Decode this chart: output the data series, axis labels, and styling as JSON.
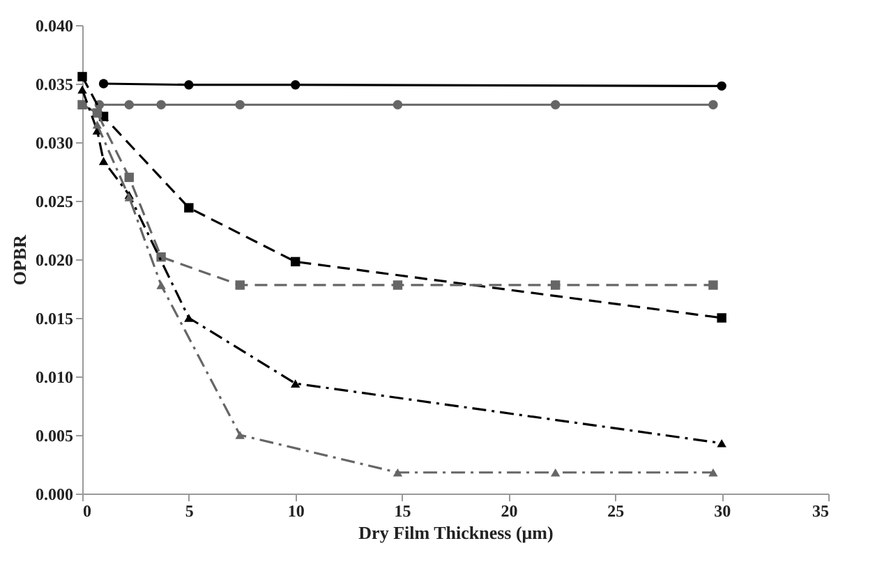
{
  "chart_data": {
    "type": "line",
    "xlabel": "Dry Film Thickness (μm)",
    "ylabel": "OPBR",
    "xlim": [
      0,
      35
    ],
    "xticks": [
      0,
      5,
      10,
      15,
      20,
      25,
      30,
      35
    ],
    "ylim": [
      0,
      0.04
    ],
    "yticks": [
      {
        "value": 0,
        "label": "0.000"
      },
      {
        "value": 0.005,
        "label": "0.005"
      },
      {
        "value": 0.01,
        "label": "0.010"
      },
      {
        "value": 0.015,
        "label": "0.015"
      },
      {
        "value": 0.02,
        "label": "0.020"
      },
      {
        "value": 0.025,
        "label": "0.025"
      },
      {
        "value": 0.03,
        "label": "0.030"
      },
      {
        "value": 0.035,
        "label": "0.035"
      },
      {
        "value": 0.04,
        "label": "0.040"
      }
    ],
    "grid": false,
    "series": [
      {
        "color": "#000000",
        "marker": "circle",
        "line_style": "solid",
        "x": [
          1,
          5,
          10,
          30
        ],
        "values": [
          0.035,
          0.0349,
          0.0349,
          0.0348
        ]
      },
      {
        "color": "#666666",
        "marker": "circle",
        "line_style": "solid",
        "x": [
          0.8,
          2.2,
          3.7,
          7.4,
          14.8,
          22.2,
          29.6
        ],
        "values": [
          0.0332,
          0.0332,
          0.0332,
          0.0332,
          0.0332,
          0.0332,
          0.0332
        ]
      },
      {
        "color": "#000000",
        "marker": "square",
        "line_style": "dashed",
        "x": [
          0,
          1,
          5,
          10,
          30
        ],
        "values": [
          0.0356,
          0.0322,
          0.0244,
          0.0198,
          0.015
        ]
      },
      {
        "color": "#666666",
        "marker": "square",
        "line_style": "dashed",
        "x": [
          0,
          0.7,
          2.2,
          3.7,
          7.4,
          14.8,
          22.2,
          29.6
        ],
        "values": [
          0.0332,
          0.0325,
          0.027,
          0.0202,
          0.0178,
          0.0178,
          0.0178,
          0.0178
        ]
      },
      {
        "color": "#000000",
        "marker": "triangle",
        "line_style": "dotted",
        "x": [
          0,
          0.7,
          1,
          2.2,
          5,
          10,
          30
        ],
        "values": [
          0.0345,
          0.031,
          0.0284,
          0.0255,
          0.015,
          0.0094,
          0.0043
        ]
      },
      {
        "color": "#666666",
        "marker": "triangle",
        "line_style": "dotted",
        "x": [
          0.7,
          2.2,
          3.7,
          7.4,
          14.8,
          22.2,
          29.6
        ],
        "values": [
          0.0315,
          0.0253,
          0.0178,
          0.005,
          0.0018,
          0.0018,
          0.0018
        ]
      }
    ]
  }
}
